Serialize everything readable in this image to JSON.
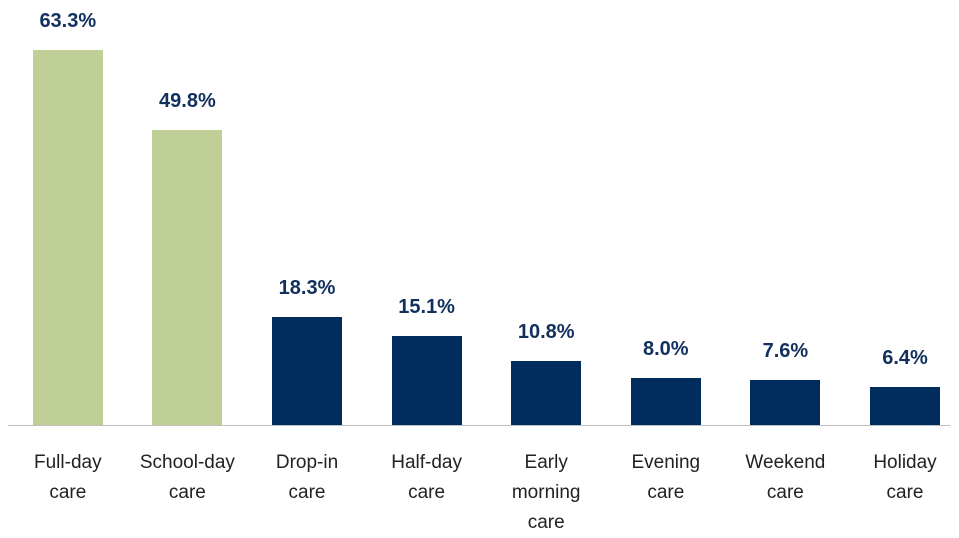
{
  "chart_data": {
    "type": "bar",
    "categories": [
      "Full-day care",
      "School-day care",
      "Drop-in care",
      "Half-day care",
      "Early morning care",
      "Evening care",
      "Weekend care",
      "Holiday care"
    ],
    "values": [
      63.3,
      49.8,
      18.3,
      15.1,
      10.8,
      8.0,
      7.6,
      6.4
    ],
    "value_labels": [
      "63.3%",
      "49.8%",
      "18.3%",
      "15.1%",
      "10.8%",
      "8.0%",
      "7.6%",
      "6.4%"
    ],
    "colors": [
      "#c0cf96",
      "#c0cf96",
      "#002d5e",
      "#002d5e",
      "#002d5e",
      "#002d5e",
      "#002d5e",
      "#002d5e"
    ]
  }
}
